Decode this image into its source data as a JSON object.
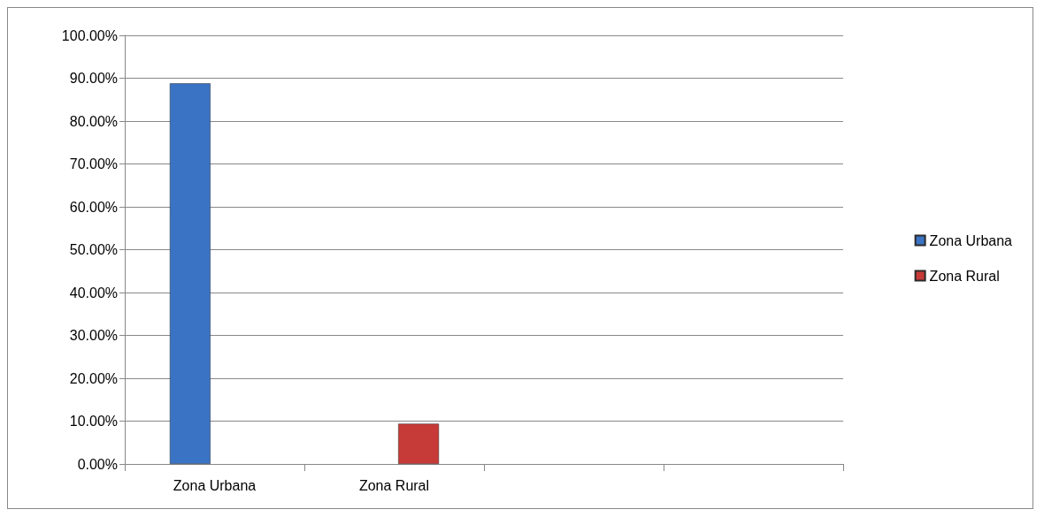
{
  "chart_data": {
    "type": "bar",
    "categories": [
      "Zona Urbana",
      "Zona Rural",
      null,
      null
    ],
    "series": [
      {
        "name": "Zona Urbana",
        "color": "#3b73c4",
        "values": [
          88.8,
          null,
          null,
          null
        ]
      },
      {
        "name": "Zona Rural",
        "color": "#c63a37",
        "values": [
          null,
          9.4,
          null,
          null
        ]
      }
    ],
    "ylim": [
      0,
      100
    ],
    "yticks": [
      {
        "value": 0,
        "label": "0.00%"
      },
      {
        "value": 10,
        "label": "10.00%"
      },
      {
        "value": 20,
        "label": "20.00%"
      },
      {
        "value": 30,
        "label": "30.00%"
      },
      {
        "value": 40,
        "label": "40.00%"
      },
      {
        "value": 50,
        "label": "50.00%"
      },
      {
        "value": 60,
        "label": "60.00%"
      },
      {
        "value": 70,
        "label": "70.00%"
      },
      {
        "value": 80,
        "label": "80.00%"
      },
      {
        "value": 90,
        "label": "90.00%"
      },
      {
        "value": 100,
        "label": "100.00%"
      }
    ],
    "grid": "y",
    "legend": "right"
  }
}
